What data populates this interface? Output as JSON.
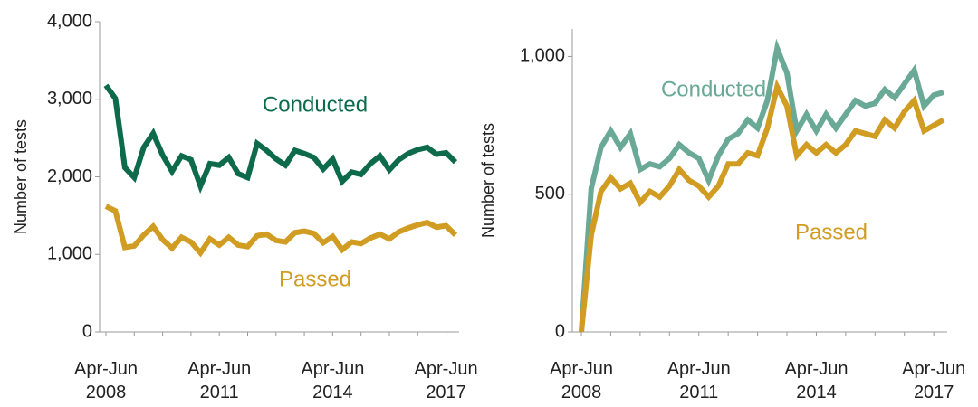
{
  "chart_data": [
    {
      "type": "line",
      "y_label": "Number of tests",
      "categories": [
        "Apr-Jun 2008",
        null,
        null,
        null,
        null,
        null,
        null,
        null,
        null,
        null,
        null,
        null,
        "Apr-Jun 2011",
        null,
        null,
        null,
        null,
        null,
        null,
        null,
        null,
        null,
        null,
        null,
        "Apr-Jun 2014",
        null,
        null,
        null,
        null,
        null,
        null,
        null,
        null,
        null,
        null,
        null,
        "Apr-Jun 2017",
        null
      ],
      "series": [
        {
          "name": "Conducted",
          "color": "#0d6b4c",
          "values": [
            3180,
            3010,
            2120,
            1990,
            2380,
            2560,
            2280,
            2070,
            2270,
            2220,
            1880,
            2170,
            2150,
            2250,
            2040,
            1990,
            2430,
            2340,
            2230,
            2150,
            2340,
            2300,
            2250,
            2100,
            2230,
            1940,
            2060,
            2030,
            2170,
            2270,
            2090,
            2220,
            2300,
            2350,
            2380,
            2290,
            2310,
            2190
          ]
        },
        {
          "name": "Passed",
          "color": "#d19c22",
          "values": [
            1620,
            1560,
            1090,
            1110,
            1250,
            1360,
            1190,
            1080,
            1220,
            1160,
            1020,
            1200,
            1120,
            1220,
            1120,
            1100,
            1240,
            1260,
            1180,
            1160,
            1280,
            1300,
            1270,
            1150,
            1230,
            1060,
            1160,
            1140,
            1210,
            1260,
            1200,
            1290,
            1340,
            1380,
            1410,
            1350,
            1370,
            1250
          ]
        }
      ],
      "ylim": [
        0,
        4000
      ],
      "yticks": [
        0,
        {
          "value": 1000,
          "label": "1,000"
        },
        {
          "value": 2000,
          "label": "2,000"
        },
        {
          "value": 3000,
          "label": "3,000"
        },
        {
          "value": 4000,
          "label": "4,000"
        }
      ]
    },
    {
      "type": "line",
      "y_label": "Number of tests",
      "categories": [
        "Apr-Jun 2008",
        null,
        null,
        null,
        null,
        null,
        null,
        null,
        null,
        null,
        null,
        null,
        "Apr-Jun 2011",
        null,
        null,
        null,
        null,
        null,
        null,
        null,
        null,
        null,
        null,
        null,
        "Apr-Jun 2014",
        null,
        null,
        null,
        null,
        null,
        null,
        null,
        null,
        null,
        null,
        null,
        "Apr-Jun 2017",
        null
      ],
      "series": [
        {
          "name": "Conducted",
          "color": "#6aa995",
          "values": [
            0,
            520,
            670,
            730,
            670,
            720,
            590,
            610,
            600,
            630,
            680,
            650,
            630,
            550,
            640,
            700,
            720,
            770,
            740,
            840,
            1030,
            940,
            730,
            790,
            730,
            790,
            740,
            790,
            840,
            820,
            830,
            880,
            850,
            900,
            950,
            820,
            860,
            870
          ]
        },
        {
          "name": "Passed",
          "color": "#d19c22",
          "values": [
            0,
            350,
            510,
            560,
            520,
            540,
            470,
            510,
            490,
            530,
            590,
            550,
            530,
            490,
            530,
            610,
            610,
            650,
            640,
            740,
            890,
            820,
            640,
            680,
            650,
            680,
            650,
            680,
            730,
            720,
            710,
            770,
            740,
            800,
            840,
            730,
            750,
            770
          ]
        }
      ],
      "ylim": [
        0,
        1100
      ],
      "yticks": [
        0,
        500,
        {
          "value": 1000,
          "label": "1,000"
        }
      ]
    }
  ]
}
